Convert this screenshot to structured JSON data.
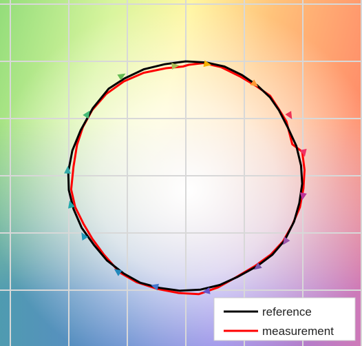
{
  "chart_data": {
    "type": "line",
    "title": "",
    "xlabel": "",
    "ylabel": "",
    "xlim": [
      -3.15,
      3.05
    ],
    "ylim": [
      -2.85,
      3.05
    ],
    "grid": true,
    "background": "hue-saturation color wheel (green top-left, yellow top, orange/red top-right, magenta right, violet bottom, blue bottom-left, teal left, white center)",
    "legend": {
      "placement": "bottom-right",
      "entries": [
        "reference",
        "measurement"
      ]
    },
    "series": [
      {
        "name": "reference",
        "color": "#000000",
        "points": [
          [
            0.0,
            2.0
          ],
          [
            0.35,
            1.98
          ],
          [
            0.66,
            1.91
          ],
          [
            0.96,
            1.76
          ],
          [
            1.22,
            1.58
          ],
          [
            1.44,
            1.37
          ],
          [
            1.59,
            1.15
          ],
          [
            1.74,
            0.85
          ],
          [
            1.89,
            0.52
          ],
          [
            1.97,
            0.18
          ],
          [
            1.99,
            -0.14
          ],
          [
            1.94,
            -0.48
          ],
          [
            1.85,
            -0.8
          ],
          [
            1.69,
            -1.13
          ],
          [
            1.48,
            -1.38
          ],
          [
            1.22,
            -1.58
          ],
          [
            0.88,
            -1.77
          ],
          [
            0.58,
            -1.91
          ],
          [
            0.25,
            -1.99
          ],
          [
            -0.1,
            -2.01
          ],
          [
            -0.45,
            -1.96
          ],
          [
            -0.78,
            -1.87
          ],
          [
            -1.06,
            -1.71
          ],
          [
            -1.35,
            -1.48
          ],
          [
            -1.57,
            -1.21
          ],
          [
            -1.78,
            -0.91
          ],
          [
            -1.92,
            -0.58
          ],
          [
            -2.0,
            -0.25
          ],
          [
            -2.01,
            0.07
          ],
          [
            -1.94,
            0.44
          ],
          [
            -1.8,
            0.79
          ],
          [
            -1.59,
            1.18
          ],
          [
            -1.32,
            1.52
          ],
          [
            -1.05,
            1.7
          ],
          [
            -0.72,
            1.86
          ],
          [
            -0.36,
            1.95
          ],
          [
            0.0,
            2.0
          ]
        ]
      },
      {
        "name": "measurement",
        "color": "#ff0000",
        "points": [
          [
            0.05,
            1.94
          ],
          [
            0.3,
            1.97
          ],
          [
            0.6,
            1.9
          ],
          [
            0.92,
            1.74
          ],
          [
            1.2,
            1.57
          ],
          [
            1.44,
            1.4
          ],
          [
            1.58,
            1.18
          ],
          [
            1.72,
            0.95
          ],
          [
            1.82,
            0.55
          ],
          [
            1.99,
            0.42
          ],
          [
            2.03,
            0.1
          ],
          [
            2.01,
            -0.22
          ],
          [
            1.95,
            -0.55
          ],
          [
            1.82,
            -0.86
          ],
          [
            1.66,
            -1.15
          ],
          [
            1.45,
            -1.38
          ],
          [
            1.18,
            -1.58
          ],
          [
            0.85,
            -1.78
          ],
          [
            0.55,
            -1.95
          ],
          [
            0.22,
            -2.07
          ],
          [
            -0.12,
            -2.05
          ],
          [
            -0.48,
            -1.98
          ],
          [
            -0.84,
            -1.86
          ],
          [
            -1.13,
            -1.69
          ],
          [
            -1.4,
            -1.38
          ],
          [
            -1.6,
            -1.1
          ],
          [
            -1.75,
            -0.84
          ],
          [
            -1.89,
            -0.55
          ],
          [
            -1.96,
            -0.24
          ],
          [
            -1.92,
            0.16
          ],
          [
            -1.86,
            0.54
          ],
          [
            -1.76,
            0.85
          ],
          [
            -1.6,
            1.15
          ],
          [
            -1.36,
            1.43
          ],
          [
            -1.06,
            1.65
          ],
          [
            -0.72,
            1.8
          ],
          [
            -0.34,
            1.88
          ],
          [
            -0.05,
            1.91
          ],
          [
            0.05,
            1.94
          ]
        ]
      }
    ],
    "arrows": [
      {
        "x": 0.37,
        "y": 1.95,
        "color": "#f5b000"
      },
      {
        "x": 1.18,
        "y": 1.6,
        "color": "#ff9933"
      },
      {
        "x": 1.78,
        "y": 1.05,
        "color": "#ee3355"
      },
      {
        "x": 2.02,
        "y": 0.4,
        "color": "#ee3366"
      },
      {
        "x": 2.0,
        "y": -0.36,
        "color": "#bb3399"
      },
      {
        "x": 1.7,
        "y": -1.15,
        "color": "#9955aa"
      },
      {
        "x": 1.22,
        "y": -1.6,
        "color": "#7755aa"
      },
      {
        "x": 0.35,
        "y": -2.02,
        "color": "#6655cc"
      },
      {
        "x": -0.53,
        "y": -1.93,
        "color": "#4477cc"
      },
      {
        "x": -1.17,
        "y": -1.67,
        "color": "#2288bb"
      },
      {
        "x": -1.75,
        "y": -1.05,
        "color": "#2299bb"
      },
      {
        "x": -1.97,
        "y": -0.5,
        "color": "#22aaaa"
      },
      {
        "x": -2.02,
        "y": 0.1,
        "color": "#33aaaa"
      },
      {
        "x": -1.68,
        "y": 1.08,
        "color": "#44bb77"
      },
      {
        "x": -1.09,
        "y": 1.75,
        "color": "#66bb55"
      },
      {
        "x": -0.18,
        "y": 1.92,
        "color": "#aabb55"
      }
    ]
  }
}
